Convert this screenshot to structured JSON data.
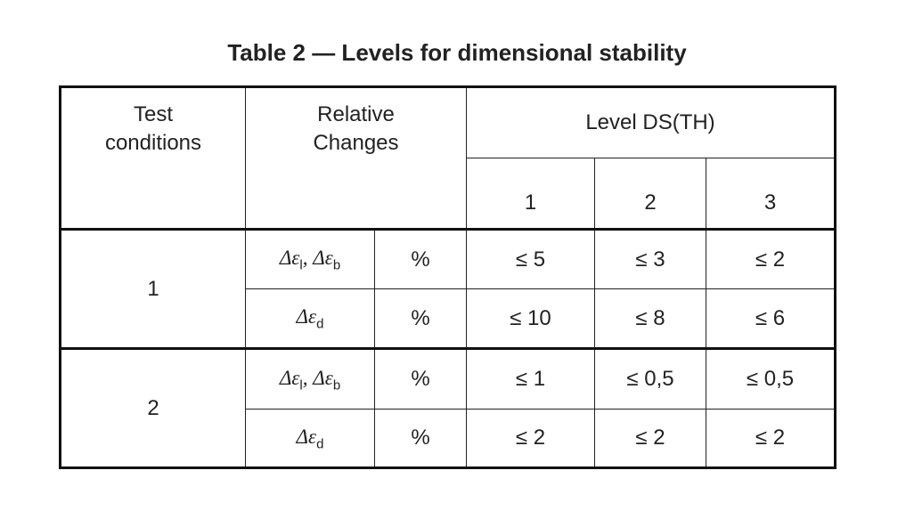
{
  "title": "Table 2 — Levels for dimensional stability",
  "header": {
    "test_conditions": "Test conditions",
    "relative_changes": "Relative Changes",
    "level": "Level DS(TH)",
    "levels": [
      "1",
      "2",
      "3"
    ]
  },
  "groups": [
    {
      "condition": "1",
      "rows": [
        {
          "symbol": {
            "terms": [
              {
                "base": "Δε",
                "sub": "l"
              },
              {
                "base": "Δε",
                "sub": "b"
              }
            ],
            "separator": ", "
          },
          "unit": "%",
          "values": [
            "≤ 5",
            "≤ 3",
            "≤ 2"
          ]
        },
        {
          "symbol": {
            "terms": [
              {
                "base": "Δε",
                "sub": "d"
              }
            ]
          },
          "unit": "%",
          "values": [
            "≤ 10",
            "≤ 8",
            "≤ 6"
          ]
        }
      ]
    },
    {
      "condition": "2",
      "rows": [
        {
          "symbol": {
            "terms": [
              {
                "base": "Δε",
                "sub": "l"
              },
              {
                "base": "Δε",
                "sub": "b"
              }
            ],
            "separator": ", "
          },
          "unit": "%",
          "values": [
            "≤ 1",
            "≤ 0,5",
            "≤ 0,5"
          ]
        },
        {
          "symbol": {
            "terms": [
              {
                "base": "Δε",
                "sub": "d"
              }
            ]
          },
          "unit": "%",
          "values": [
            "≤ 2",
            "≤ 2",
            "≤ 2"
          ]
        }
      ]
    }
  ]
}
